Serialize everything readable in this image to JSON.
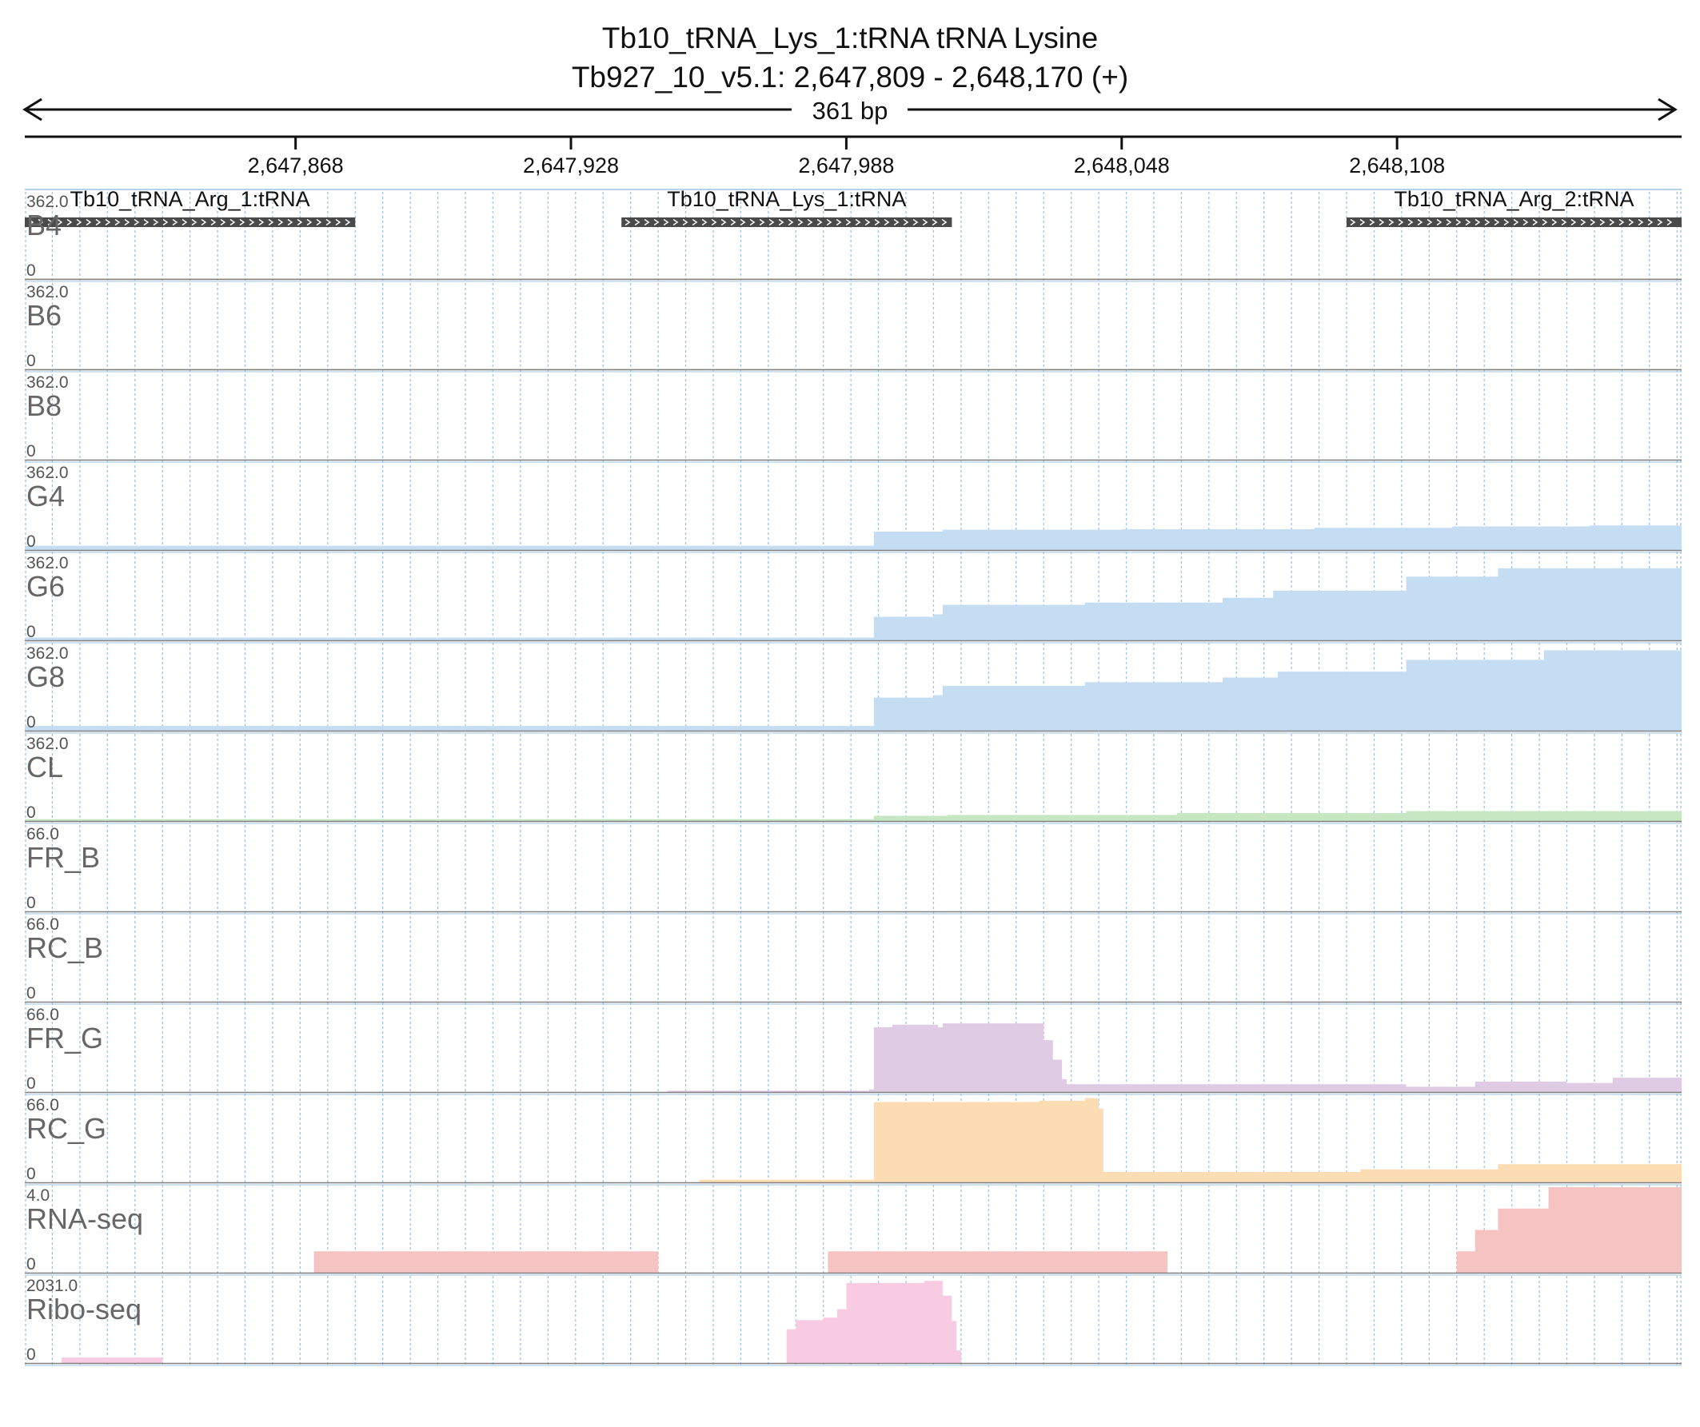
{
  "header": {
    "title_line1": "Tb10_tRNA_Lys_1:tRNA  tRNA Lysine",
    "title_line2": "Tb927_10_v5.1: 2,647,809 - 2,648,170 (+)",
    "span_label": "361 bp"
  },
  "colors": {
    "blue": "#c5ddf2",
    "green": "#c7e6c2",
    "purple": "#e0cbe5",
    "orange": "#fcdcb2",
    "red": "#f6c3c3",
    "pink": "#f9cbe3",
    "grid": "#9cc4e6",
    "separator": "#808080",
    "feature": "#4a4a4a"
  },
  "chart_data": {
    "type": "area",
    "chromosome": "Tb927_10_v5.1",
    "x_range": [
      2647809,
      2648170
    ],
    "strand": "+",
    "ticks": [
      {
        "pos": 2647868,
        "label": "2,647,868"
      },
      {
        "pos": 2647928,
        "label": "2,647,928"
      },
      {
        "pos": 2647988,
        "label": "2,647,988"
      },
      {
        "pos": 2648048,
        "label": "2,648,048"
      },
      {
        "pos": 2648108,
        "label": "2,648,108"
      }
    ],
    "features": [
      {
        "label": "Tb10_tRNA_Arg_1:tRNA",
        "start": 2647809,
        "end": 2647881
      },
      {
        "label": "Tb10_tRNA_Lys_1:tRNA",
        "start": 2647939,
        "end": 2648011
      },
      {
        "label": "Tb10_tRNA_Arg_2:tRNA",
        "start": 2648097,
        "end": 2648170
      }
    ],
    "series": [
      {
        "name": "B4",
        "max_label": "362.0",
        "zero_label": "0",
        "max": 362,
        "color": "#e8d6b8",
        "points": [
          [
            2647809,
            2
          ],
          [
            2648170,
            2
          ]
        ]
      },
      {
        "name": "B6",
        "max_label": "362.0",
        "zero_label": "0",
        "max": 362,
        "color": "#d8e4c4",
        "points": [
          [
            2647809,
            2
          ],
          [
            2648170,
            2
          ]
        ]
      },
      {
        "name": "B8",
        "max_label": "362.0",
        "zero_label": "0",
        "max": 362,
        "color": "#c5ddf2",
        "points": [
          [
            2647809,
            0
          ],
          [
            2648170,
            0
          ]
        ]
      },
      {
        "name": "G4",
        "max_label": "362.0",
        "zero_label": "0",
        "max": 362,
        "color": "#c5ddf2",
        "points": [
          [
            2647809,
            18
          ],
          [
            2647990,
            18
          ],
          [
            2647994,
            78
          ],
          [
            2648008,
            78
          ],
          [
            2648009,
            86
          ],
          [
            2648040,
            86
          ],
          [
            2648048,
            88
          ],
          [
            2648090,
            94
          ],
          [
            2648120,
            100
          ],
          [
            2648150,
            104
          ],
          [
            2648170,
            104
          ]
        ]
      },
      {
        "name": "G6",
        "max_label": "362.0",
        "zero_label": "0",
        "max": 362,
        "color": "#c5ddf2",
        "points": [
          [
            2647809,
            12
          ],
          [
            2647993,
            12
          ],
          [
            2647994,
            100
          ],
          [
            2648007,
            110
          ],
          [
            2648009,
            150
          ],
          [
            2648040,
            160
          ],
          [
            2648070,
            180
          ],
          [
            2648081,
            210
          ],
          [
            2648110,
            270
          ],
          [
            2648130,
            305
          ],
          [
            2648170,
            320
          ]
        ]
      },
      {
        "name": "G8",
        "max_label": "362.0",
        "zero_label": "0",
        "max": 362,
        "color": "#c5ddf2",
        "points": [
          [
            2647809,
            20
          ],
          [
            2647990,
            20
          ],
          [
            2647994,
            140
          ],
          [
            2648007,
            150
          ],
          [
            2648009,
            190
          ],
          [
            2648040,
            205
          ],
          [
            2648070,
            225
          ],
          [
            2648082,
            250
          ],
          [
            2648110,
            300
          ],
          [
            2648140,
            340
          ],
          [
            2648170,
            350
          ]
        ]
      },
      {
        "name": "CL",
        "max_label": "362.0",
        "zero_label": "0",
        "max": 362,
        "color": "#c7e6c2",
        "points": [
          [
            2647809,
            8
          ],
          [
            2647993,
            8
          ],
          [
            2647994,
            22
          ],
          [
            2648010,
            26
          ],
          [
            2648060,
            34
          ],
          [
            2648110,
            42
          ],
          [
            2648170,
            48
          ]
        ]
      },
      {
        "name": "FR_B",
        "max_label": "66.0",
        "zero_label": "0",
        "max": 66,
        "color": "#e0cbe5",
        "points": [
          [
            2647809,
            0
          ],
          [
            2648170,
            0
          ]
        ]
      },
      {
        "name": "RC_B",
        "max_label": "66.0",
        "zero_label": "0",
        "max": 66,
        "color": "#fcdcb2",
        "points": [
          [
            2647809,
            0
          ],
          [
            2648170,
            0
          ]
        ]
      },
      {
        "name": "FR_G",
        "max_label": "66.0",
        "zero_label": "0",
        "max": 66,
        "color": "#e0cbe5",
        "points": [
          [
            2647809,
            0
          ],
          [
            2647948,
            0
          ],
          [
            2647949,
            1
          ],
          [
            2647993,
            2
          ],
          [
            2647994,
            50
          ],
          [
            2647998,
            52
          ],
          [
            2648008,
            50
          ],
          [
            2648009,
            53
          ],
          [
            2648029,
            53
          ],
          [
            2648031,
            40
          ],
          [
            2648033,
            25
          ],
          [
            2648035,
            10
          ],
          [
            2648036,
            6
          ],
          [
            2648080,
            6
          ],
          [
            2648110,
            4
          ],
          [
            2648125,
            8
          ],
          [
            2648145,
            7
          ],
          [
            2648155,
            11
          ],
          [
            2648170,
            11
          ]
        ]
      },
      {
        "name": "RC_G",
        "max_label": "66.0",
        "zero_label": "0",
        "max": 66,
        "color": "#fcdcb2",
        "points": [
          [
            2647809,
            0
          ],
          [
            2647955,
            0
          ],
          [
            2647956,
            2
          ],
          [
            2647993,
            2
          ],
          [
            2647994,
            62
          ],
          [
            2648030,
            63
          ],
          [
            2648040,
            65
          ],
          [
            2648043,
            57
          ],
          [
            2648044,
            8
          ],
          [
            2648070,
            8
          ],
          [
            2648100,
            10
          ],
          [
            2648130,
            14
          ],
          [
            2648170,
            12
          ]
        ]
      },
      {
        "name": "RNA-seq",
        "max_label": "4.0",
        "zero_label": "0",
        "max": 4,
        "color": "#f6c3c3",
        "points": [
          [
            2647809,
            0
          ],
          [
            2647871,
            0
          ],
          [
            2647872,
            1
          ],
          [
            2647946,
            1
          ],
          [
            2647947,
            0
          ],
          [
            2647983,
            0
          ],
          [
            2647984,
            1
          ],
          [
            2648057,
            1
          ],
          [
            2648058,
            0
          ],
          [
            2648120,
            0
          ],
          [
            2648121,
            1
          ],
          [
            2648124,
            1
          ],
          [
            2648125,
            2
          ],
          [
            2648129,
            2
          ],
          [
            2648130,
            3
          ],
          [
            2648140,
            3
          ],
          [
            2648141,
            4
          ],
          [
            2648170,
            4
          ]
        ]
      },
      {
        "name": "Ribo-seq",
        "max_label": "2031.0",
        "zero_label": "0",
        "max": 2031,
        "color": "#f9cbe3",
        "points": [
          [
            2647809,
            0
          ],
          [
            2647816,
            0
          ],
          [
            2647817,
            130
          ],
          [
            2647838,
            130
          ],
          [
            2647839,
            0
          ],
          [
            2647974,
            0
          ],
          [
            2647975,
            800
          ],
          [
            2647977,
            1020
          ],
          [
            2647983,
            1080
          ],
          [
            2647986,
            1280
          ],
          [
            2647988,
            1900
          ],
          [
            2648005,
            1950
          ],
          [
            2648009,
            1600
          ],
          [
            2648011,
            1000
          ],
          [
            2648012,
            300
          ],
          [
            2648013,
            0
          ],
          [
            2648170,
            0
          ]
        ]
      }
    ]
  }
}
